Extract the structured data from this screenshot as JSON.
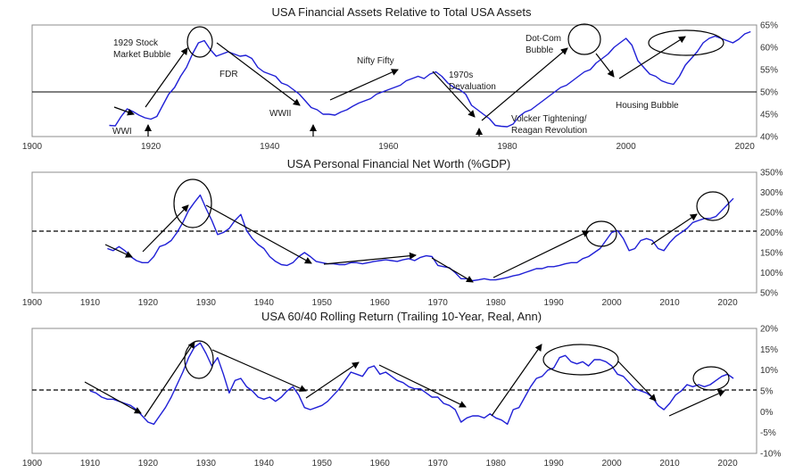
{
  "chart_data": [
    {
      "type": "line",
      "title": "USA Financial Assets Relative to Total USA Assets",
      "x_ticks": [
        "1900",
        "1920",
        "1940",
        "1960",
        "1980",
        "2000",
        "2020"
      ],
      "y_ticks": [
        "40%",
        "45%",
        "50%",
        "55%",
        "60%",
        "65%"
      ],
      "xlim": [
        1900,
        2022
      ],
      "ylim": [
        40,
        65
      ],
      "reference_line": 50,
      "annotations": [
        "1929 Stock\nMarket Bubble",
        "FDR",
        "WWII",
        "WWI",
        "Nifty Fifty",
        "1970s\nDevaluation",
        "Volcker Tightening/\nReagan Revolution",
        "Dot-Com\nBubble",
        "Housing Bubble"
      ],
      "series": [
        {
          "x": [
            1913,
            1914,
            1915,
            1916,
            1917,
            1918,
            1919,
            1920,
            1921,
            1922,
            1923,
            1924,
            1925,
            1926,
            1927,
            1928,
            1929,
            1930,
            1931,
            1932,
            1933,
            1934,
            1935,
            1936,
            1937,
            1938,
            1939,
            1940,
            1941,
            1942,
            1943,
            1944,
            1945,
            1946,
            1947,
            1948,
            1949,
            1950,
            1951,
            1952,
            1953,
            1954,
            1955,
            1956,
            1957,
            1958,
            1959,
            1960,
            1961,
            1962,
            1963,
            1964,
            1965,
            1966,
            1967,
            1968,
            1969,
            1970,
            1971,
            1972,
            1973,
            1974,
            1975,
            1976,
            1977,
            1978,
            1979,
            1980,
            1981,
            1982,
            1983,
            1984,
            1985,
            1986,
            1987,
            1988,
            1989,
            1990,
            1991,
            1992,
            1993,
            1994,
            1995,
            1996,
            1997,
            1998,
            1999,
            2000,
            2001,
            2002,
            2003,
            2004,
            2005,
            2006,
            2007,
            2008,
            2009,
            2010,
            2011,
            2012,
            2013,
            2014,
            2015,
            2016,
            2017,
            2018,
            2019,
            2020,
            2021
          ],
          "y": [
            42.5,
            42.4,
            44.5,
            46.2,
            45.6,
            44.8,
            44.2,
            43.9,
            44.5,
            47.0,
            49.5,
            51.0,
            53.5,
            55.5,
            58.5,
            61.0,
            61.5,
            59.5,
            58.0,
            58.5,
            59.0,
            58.5,
            58.0,
            58.2,
            57.5,
            55.5,
            54.5,
            54.0,
            53.5,
            52.0,
            51.5,
            50.5,
            49.5,
            48.0,
            46.5,
            46.0,
            45.0,
            45.0,
            44.8,
            45.5,
            46.0,
            46.8,
            47.5,
            48.0,
            48.5,
            49.5,
            50.0,
            50.5,
            51.0,
            51.5,
            52.5,
            53.0,
            53.5,
            53.0,
            54.0,
            54.5,
            53.5,
            52.0,
            51.0,
            50.5,
            49.5,
            47.0,
            46.0,
            45.0,
            44.0,
            42.5,
            42.3,
            42.2,
            42.8,
            44.5,
            45.5,
            46.0,
            47.0,
            48.0,
            49.0,
            50.0,
            51.0,
            51.5,
            52.5,
            53.5,
            54.5,
            55.0,
            56.5,
            57.5,
            58.5,
            60.0,
            61.0,
            62.0,
            60.5,
            57.0,
            55.5,
            54.0,
            53.5,
            52.5,
            52.0,
            51.7,
            53.5,
            56.0,
            57.5,
            59.0,
            61.0,
            62.0,
            62.5,
            62.0,
            61.5,
            61.0,
            61.8,
            63.0,
            63.5
          ]
        }
      ]
    },
    {
      "type": "line",
      "title": "USA Personal Financial Net Worth (%GDP)",
      "x_ticks": [
        "1900",
        "1910",
        "1920",
        "1930",
        "1940",
        "1950",
        "1960",
        "1970",
        "1980",
        "1990",
        "2000",
        "2010",
        "2020"
      ],
      "y_ticks": [
        "50%",
        "100%",
        "150%",
        "200%",
        "250%",
        "300%",
        "350%"
      ],
      "xlim": [
        1900,
        2025
      ],
      "ylim": [
        50,
        350
      ],
      "reference_line": 205,
      "series": [
        {
          "x": [
            1913,
            1914,
            1915,
            1916,
            1917,
            1918,
            1919,
            1920,
            1921,
            1922,
            1923,
            1924,
            1925,
            1926,
            1927,
            1928,
            1929,
            1930,
            1931,
            1932,
            1933,
            1934,
            1935,
            1936,
            1937,
            1938,
            1939,
            1940,
            1941,
            1942,
            1943,
            1944,
            1945,
            1946,
            1947,
            1948,
            1949,
            1950,
            1951,
            1952,
            1953,
            1954,
            1955,
            1956,
            1957,
            1958,
            1959,
            1960,
            1961,
            1962,
            1963,
            1964,
            1965,
            1966,
            1967,
            1968,
            1969,
            1970,
            1971,
            1972,
            1973,
            1974,
            1975,
            1976,
            1977,
            1978,
            1979,
            1980,
            1981,
            1982,
            1983,
            1984,
            1985,
            1986,
            1987,
            1988,
            1989,
            1990,
            1991,
            1992,
            1993,
            1994,
            1995,
            1996,
            1997,
            1998,
            1999,
            2000,
            2001,
            2002,
            2003,
            2004,
            2005,
            2006,
            2007,
            2008,
            2009,
            2010,
            2011,
            2012,
            2013,
            2014,
            2015,
            2016,
            2017,
            2018,
            2019,
            2020,
            2021
          ],
          "y": [
            160,
            155,
            165,
            155,
            140,
            130,
            125,
            125,
            140,
            165,
            170,
            180,
            200,
            225,
            255,
            275,
            293,
            260,
            230,
            195,
            200,
            210,
            230,
            245,
            205,
            185,
            170,
            160,
            140,
            128,
            120,
            118,
            125,
            140,
            150,
            140,
            128,
            125,
            122,
            122,
            120,
            120,
            125,
            125,
            122,
            125,
            128,
            130,
            132,
            130,
            128,
            132,
            135,
            130,
            138,
            142,
            140,
            118,
            115,
            112,
            100,
            85,
            85,
            80,
            82,
            85,
            82,
            82,
            85,
            88,
            92,
            95,
            100,
            105,
            110,
            110,
            115,
            115,
            118,
            122,
            125,
            125,
            135,
            140,
            150,
            160,
            180,
            200,
            205,
            185,
            155,
            160,
            180,
            185,
            180,
            160,
            155,
            175,
            190,
            200,
            210,
            225,
            230,
            235,
            235,
            240,
            255,
            270,
            285
          ]
        }
      ]
    },
    {
      "type": "line",
      "title": "USA 60/40 Rolling Return (Trailing 10-Year, Real, Ann)",
      "x_ticks": [
        "1900",
        "1910",
        "1920",
        "1930",
        "1940",
        "1950",
        "1960",
        "1970",
        "1980",
        "1990",
        "2000",
        "2010",
        "2020"
      ],
      "y_ticks": [
        "-10%",
        "-5%",
        "0%",
        "5%",
        "10%",
        "15%",
        "20%"
      ],
      "xlim": [
        1900,
        2025
      ],
      "ylim": [
        -10,
        20
      ],
      "reference_line": 5.5,
      "series": [
        {
          "x": [
            1910,
            1911,
            1912,
            1913,
            1914,
            1915,
            1916,
            1917,
            1918,
            1919,
            1920,
            1921,
            1922,
            1923,
            1924,
            1925,
            1926,
            1927,
            1928,
            1929,
            1930,
            1931,
            1932,
            1933,
            1934,
            1935,
            1936,
            1937,
            1938,
            1939,
            1940,
            1941,
            1942,
            1943,
            1944,
            1945,
            1946,
            1947,
            1948,
            1949,
            1950,
            1951,
            1952,
            1953,
            1954,
            1955,
            1956,
            1957,
            1958,
            1959,
            1960,
            1961,
            1962,
            1963,
            1964,
            1965,
            1966,
            1967,
            1968,
            1969,
            1970,
            1971,
            1972,
            1973,
            1974,
            1975,
            1976,
            1977,
            1978,
            1979,
            1980,
            1981,
            1982,
            1983,
            1984,
            1985,
            1986,
            1987,
            1988,
            1989,
            1990,
            1991,
            1992,
            1993,
            1994,
            1995,
            1996,
            1997,
            1998,
            1999,
            2000,
            2001,
            2002,
            2003,
            2004,
            2005,
            2006,
            2007,
            2008,
            2009,
            2010,
            2011,
            2012,
            2013,
            2014,
            2015,
            2016,
            2017,
            2018,
            2019,
            2020,
            2021
          ],
          "y": [
            5.0,
            4.5,
            3.5,
            3.0,
            3.0,
            2.5,
            2.0,
            1.5,
            0.5,
            -1.0,
            -2.5,
            -3.0,
            -1.0,
            1.0,
            3.5,
            6.5,
            9.5,
            13.0,
            15.5,
            16.5,
            14.0,
            11.0,
            13.0,
            9.0,
            4.5,
            7.5,
            8.0,
            6.0,
            5.0,
            3.5,
            3.0,
            3.5,
            2.5,
            3.5,
            5.0,
            6.0,
            4.0,
            1.0,
            0.5,
            1.0,
            1.5,
            2.5,
            4.0,
            5.5,
            7.5,
            9.5,
            9.0,
            8.5,
            10.5,
            11.0,
            9.0,
            9.5,
            8.5,
            7.5,
            7.0,
            6.0,
            5.5,
            5.5,
            4.5,
            3.5,
            3.5,
            2.0,
            1.5,
            0.5,
            -2.5,
            -1.5,
            -1.0,
            -1.0,
            -1.5,
            -0.5,
            -1.5,
            -2.0,
            -3.0,
            0.5,
            1.0,
            3.5,
            6.0,
            8.0,
            8.5,
            10.0,
            10.5,
            13.0,
            13.5,
            12.0,
            11.5,
            12.0,
            11.0,
            12.5,
            12.5,
            12.0,
            11.0,
            9.0,
            8.5,
            7.0,
            5.5,
            5.0,
            4.5,
            3.5,
            1.5,
            0.5,
            2.0,
            4.0,
            5.0,
            6.5,
            6.0,
            6.5,
            6.0,
            6.5,
            7.5,
            8.5,
            9.0,
            8.0
          ]
        }
      ]
    }
  ]
}
